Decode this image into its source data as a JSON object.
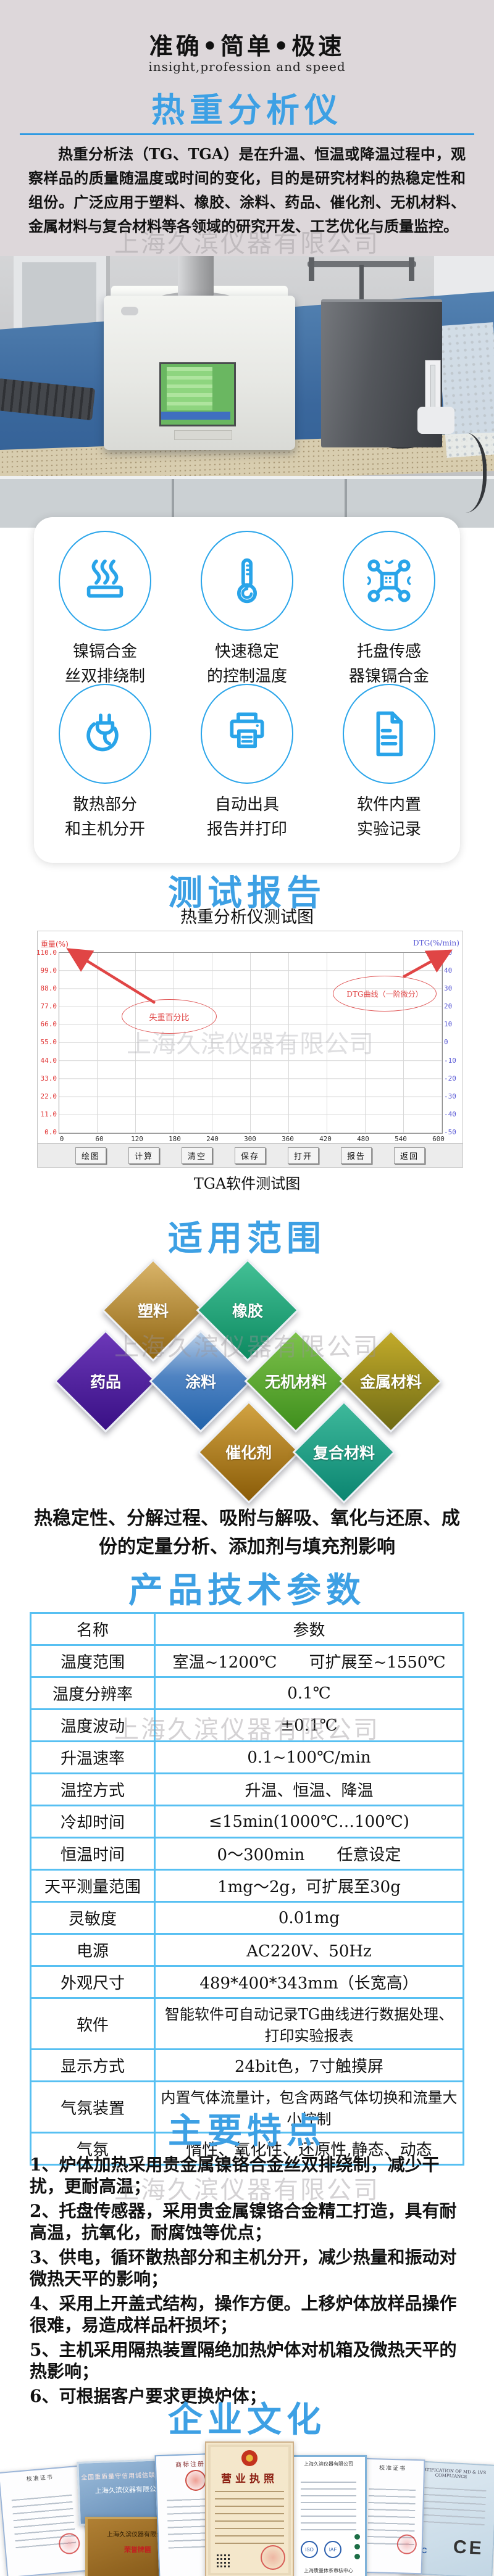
{
  "watermark": "上海久滨仪器有限公司",
  "header": {
    "slogan_cn": "准确•简单•极速",
    "slogan_en": "insight,profession and speed",
    "product_title": "热重分析仪",
    "intro": "热重分析法（TG、TGA）是在升温、恒温或降温过程中，观察样品的质量随温度或时间的变化，目的是研究材料的热稳定性和组份。广泛应用于塑料、橡胶、涂料、药品、催化剂、无机材料、金属材料与复合材料等各领域的研究开发、工艺优化与质量监控。"
  },
  "features": {
    "items": [
      {
        "icon": "heating-element-icon",
        "line1": "镍镉合金",
        "line2": "丝双排绕制"
      },
      {
        "icon": "thermometer-icon",
        "line1": "快速稳定",
        "line2": "的控制温度"
      },
      {
        "icon": "sensor-chip-icon",
        "line1": "托盘传感",
        "line2": "器镍镉合金"
      },
      {
        "icon": "power-plug-icon",
        "line1": "散热部分",
        "line2": "和主机分开"
      },
      {
        "icon": "printer-icon",
        "line1": "自动出具",
        "line2": "报告并打印"
      },
      {
        "icon": "document-icon",
        "line1": "软件内置",
        "line2": "实验记录"
      }
    ]
  },
  "report": {
    "title": "测试报告",
    "subtitle": "热重分析仪测试图",
    "caption": "TGA软件测试图"
  },
  "chart_data": {
    "type": "line",
    "description": "TGA软件空白测试界面，坐标网格与标注箭头，未绘制曲线",
    "series": [],
    "x_label": "温度(℃)",
    "x_ticks": [
      "0",
      "60",
      "120",
      "180",
      "240",
      "300",
      "360",
      "420",
      "480",
      "540",
      "600"
    ],
    "x_range": [
      0,
      600
    ],
    "y_left_label": "重量(%)",
    "y_left_ticks": [
      "110.0",
      "99.0",
      "88.0",
      "77.0",
      "66.0",
      "55.0",
      "44.0",
      "33.0",
      "22.0",
      "11.0",
      "0.0"
    ],
    "y_left_range": [
      0,
      110
    ],
    "y_right_label": "DTG(%/min)",
    "y_right_ticks": [
      "50",
      "40",
      "30",
      "20",
      "10",
      "0",
      "-10",
      "-20",
      "-30",
      "-40",
      "-50"
    ],
    "y_right_range": [
      -50,
      50
    ],
    "grid": true,
    "legend_position": "none",
    "annotations": [
      {
        "text": "失重百分比"
      },
      {
        "text": "DTG曲线（一阶微分）"
      }
    ],
    "toolbar_buttons": [
      "绘图",
      "计算",
      "清空",
      "保存",
      "打开",
      "报告",
      "返回"
    ],
    "colors": {
      "left_axis": "#e03333",
      "right_axis": "#5b5bd6",
      "annotation": "#e04545"
    }
  },
  "scope": {
    "title": "适用范围",
    "diamonds": [
      {
        "label": "塑料",
        "color_top": "#d9b469",
        "color_bottom": "#8f6512"
      },
      {
        "label": "橡胶",
        "color_top": "#43c095",
        "color_bottom": "#0d8a61"
      },
      {
        "label": "药品",
        "color_top": "#6c38b8",
        "color_bottom": "#391085"
      },
      {
        "label": "涂料",
        "color_top": "#b9cfe8",
        "color_bottom": "#2263ab"
      },
      {
        "label": "无机材料",
        "color_top": "#7dc24b",
        "color_bottom": "#3f8f1d"
      },
      {
        "label": "金属材料",
        "color_top": "#c3ab2a",
        "color_bottom": "#6f6b15"
      },
      {
        "label": "催化剂",
        "color_top": "#d2a342",
        "color_bottom": "#8a5c08"
      },
      {
        "label": "复合材料",
        "color_top": "#3eb99b",
        "color_bottom": "#0b8571"
      }
    ],
    "summary": "热稳定性、分解过程、吸附与解吸、氧化与还原、成份的定量分析、添加剂与填充剂影响"
  },
  "specs": {
    "title": "产品技术参数",
    "col1": "名称",
    "col2": "参数",
    "rows": [
      {
        "n": "温度范围",
        "v": "室温~1200℃　　可扩展至~1550℃"
      },
      {
        "n": "温度分辨率",
        "v": "0.1℃"
      },
      {
        "n": "温度波动",
        "v": "±0.1℃"
      },
      {
        "n": "升温速率",
        "v": "0.1~100℃/min"
      },
      {
        "n": "温控方式",
        "v": "升温、恒温、降温"
      },
      {
        "n": "冷却时间",
        "v": "≤15min(1000℃…100℃)"
      },
      {
        "n": "恒温时间",
        "v": "0～300min　　任意设定"
      },
      {
        "n": "天平测量范围",
        "v": "1mg～2g，可扩展至30g"
      },
      {
        "n": "灵敏度",
        "v": "0.01mg"
      },
      {
        "n": "电源",
        "v": "AC220V、50Hz"
      },
      {
        "n": "外观尺寸",
        "v": "489*400*343mm（长宽高）"
      },
      {
        "n": "软件",
        "v": "智能软件可自动记录TG曲线进行数据处理、打印实验报表"
      },
      {
        "n": "显示方式",
        "v": "24bit色，7寸触摸屏"
      },
      {
        "n": "气氛装置",
        "v": "内置气体流量计，包含两路气体切换和流量大小控制"
      },
      {
        "n": "气氛",
        "v": "惰性、氧化性、还原性,静态、动态"
      }
    ]
  },
  "highlights": {
    "title": "主要特点",
    "items": [
      "1、炉体加热采用贵金属镍铬合金丝双排绕制，减少干扰，更耐高温；",
      "2、托盘传感器，采用贵金属镍铬合金精工打造，具有耐高温，抗氧化，耐腐蚀等优点；",
      "3、供电，循环散热部分和主机分开，减少热量和振动对微热天平的影响；",
      "4、采用上开盖式结构，操作方便。上移炉体放样品操作很难，易造成样品杆损坏；",
      "5、主机采用隔热装置隔绝加热炉体对机箱及微热天平的热影响；",
      "6、可根据客户要求更换炉体；"
    ]
  },
  "culture": {
    "title": "企业文化",
    "certificates": [
      {
        "name": "校准证书"
      },
      {
        "name": "全国重质量守信用诚信联盟单位",
        "company": "上海久滨仪器有限公司"
      },
      {
        "name": "荣誉牌匾",
        "company": "上海久滨仪器有限公司"
      },
      {
        "name": "商标注册证"
      },
      {
        "name": "营业执照"
      },
      {
        "name": "质量管理体系认证证书",
        "company": "上海久滨仪器有限公司",
        "footer": "上海质量体系审核中心"
      },
      {
        "name": "校准证书"
      },
      {
        "name": "CERTIFICATION OF MD & LVS COMPLIANCE",
        "mark": "CE",
        "logo": "CRC"
      }
    ]
  }
}
